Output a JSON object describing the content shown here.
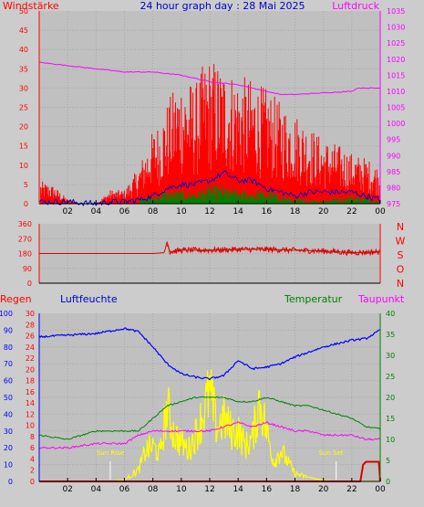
{
  "labels": {
    "windstaerke": "Windstärke",
    "title": "24 hour graph day : 28 Mai 2025",
    "luftdruck": "Luftdruck",
    "regen": "Regen",
    "luftfeuchte": "Luftfeuchte",
    "temperatur": "Temperatur",
    "taupunkt": "Taupunkt",
    "sunrise": "Sun Rise",
    "sunset": "Sun Set"
  },
  "colors": {
    "wind": "#ff0000",
    "gust_fill": "#ff0000",
    "wind_avg": "#0000cc",
    "wind_low": "#008000",
    "pressure": "#ff00ff",
    "direction": "#dd0000",
    "humidity": "#0000ff",
    "temperature": "#008000",
    "dewpoint": "#ff00ff",
    "solar": "#ffff00",
    "rain": "#dd0000",
    "grid": "#a8a8a8"
  },
  "chart_data": [
    {
      "type": "line",
      "name": "wind-pressure",
      "x_ticks": [
        "02",
        "04",
        "06",
        "08",
        "10",
        "12",
        "14",
        "16",
        "18",
        "20",
        "22",
        "00"
      ],
      "y_left_ticks": [
        "0",
        "5",
        "10",
        "15",
        "20",
        "25",
        "30",
        "35",
        "40",
        "45",
        "50"
      ],
      "y_right_ticks": [
        "975",
        "980",
        "985",
        "990",
        "995",
        "1000",
        "1005",
        "1010",
        "1015",
        "1020",
        "1025",
        "1030",
        "1035"
      ],
      "ylim_left": [
        0,
        50
      ],
      "ylim_right": [
        975,
        1035
      ],
      "pressure": {
        "x": [
          0,
          2,
          4,
          6,
          8,
          10,
          11,
          12,
          14,
          15,
          16,
          17,
          18,
          20,
          22,
          22.4,
          24
        ],
        "y": [
          1019,
          1018,
          1017,
          1016,
          1016,
          1015,
          1014,
          1013,
          1012,
          1011,
          1010,
          1009,
          1009,
          1009.5,
          1010,
          1011,
          1011
        ]
      },
      "gust_envelope": {
        "x": [
          0,
          1,
          2,
          3,
          4,
          5,
          6,
          7,
          7.5,
          8,
          8.5,
          9,
          10,
          11,
          11.5,
          12,
          13,
          14,
          15,
          16,
          17,
          18,
          19,
          20,
          21,
          22,
          23,
          24
        ],
        "y": [
          5,
          4,
          1,
          0,
          0,
          3,
          3,
          8,
          12,
          16,
          18,
          22,
          28,
          26,
          30,
          32,
          30,
          28,
          27,
          25,
          22,
          20,
          17,
          14,
          13,
          11,
          10,
          8
        ]
      },
      "wind_avg": {
        "x": [
          0,
          2,
          4,
          5,
          6,
          7,
          8,
          9,
          10,
          11,
          12,
          13,
          14,
          15,
          16,
          17,
          18,
          19,
          20,
          21,
          22,
          23,
          24
        ],
        "y": [
          0.5,
          0.5,
          0,
          0.5,
          0.5,
          1,
          2,
          4,
          5,
          5,
          6,
          8,
          6,
          6,
          4,
          3,
          2,
          3,
          3,
          3,
          3,
          2,
          1
        ]
      },
      "wind_low": {
        "x": [
          0,
          4,
          7,
          8,
          9,
          10,
          11,
          12,
          13,
          14,
          15,
          16,
          17,
          18,
          20,
          22,
          24
        ],
        "y": [
          0,
          0,
          1,
          2,
          3,
          3,
          3,
          4,
          4,
          3,
          3,
          3,
          2,
          1,
          1,
          2,
          1
        ]
      }
    },
    {
      "type": "line",
      "name": "wind-direction",
      "y_ticks": [
        "360",
        "270",
        "180",
        "90",
        "0"
      ],
      "y_right_labels": [
        "N",
        "W",
        "S",
        "O",
        "N"
      ],
      "ylim": [
        0,
        360
      ],
      "direction": {
        "x": [
          0,
          2,
          4,
          6,
          8,
          8.8,
          9,
          9.2,
          10,
          12,
          14,
          16,
          18,
          20,
          22,
          24
        ],
        "y": [
          180,
          180,
          180,
          180,
          180,
          185,
          250,
          190,
          200,
          200,
          205,
          205,
          200,
          195,
          185,
          190
        ]
      }
    },
    {
      "type": "line",
      "name": "humidity-temperature",
      "x_ticks": [
        "02",
        "04",
        "06",
        "08",
        "10",
        "12",
        "14",
        "16",
        "18",
        "20",
        "22",
        "00"
      ],
      "y_humidity_ticks": [
        "100",
        "90",
        "80",
        "70",
        "60",
        "50",
        "40",
        "30",
        "20",
        "10",
        "0"
      ],
      "y_rain_ticks": [
        "30",
        "28",
        "26",
        "24",
        "22",
        "20",
        "18",
        "16",
        "14",
        "12",
        "10",
        "8",
        "6",
        "4",
        "2",
        "0"
      ],
      "y_temp_ticks": [
        "0",
        "5",
        "10",
        "15",
        "20",
        "25",
        "30",
        "35",
        "40"
      ],
      "ylim_humidity": [
        0,
        100
      ],
      "ylim_rain": [
        0,
        30
      ],
      "ylim_temp": [
        0,
        40
      ],
      "humidity": {
        "x": [
          0,
          2,
          4,
          6,
          7,
          8,
          9,
          10,
          11,
          12,
          13,
          14,
          15,
          16,
          17,
          18,
          19,
          20,
          21,
          22,
          23,
          24
        ],
        "y": [
          86,
          87,
          88,
          91,
          89,
          80,
          70,
          64,
          62,
          61,
          63,
          72,
          67,
          68,
          70,
          74,
          77,
          80,
          82,
          84,
          85,
          90
        ]
      },
      "temperature": {
        "x": [
          0,
          2,
          4,
          6,
          7,
          8,
          9,
          10,
          11,
          12,
          13,
          14,
          15,
          16,
          17,
          18,
          19,
          20,
          21,
          22,
          23,
          24
        ],
        "y": [
          11,
          10,
          12,
          12,
          12,
          15,
          18,
          19,
          20,
          20,
          20,
          19,
          19,
          20,
          19,
          18,
          18,
          17,
          16,
          15,
          13,
          12.5
        ]
      },
      "dewpoint": {
        "x": [
          0,
          2,
          4,
          6,
          7,
          8,
          9,
          10,
          11,
          12,
          13,
          14,
          15,
          16,
          17,
          18,
          19,
          20,
          21,
          22,
          23,
          24
        ],
        "y": [
          8,
          8,
          9,
          9,
          11,
          12,
          12,
          12,
          12,
          12,
          13,
          14,
          13,
          14,
          13,
          12,
          12,
          11,
          11,
          11,
          10,
          10
        ]
      },
      "solar": {
        "x": [
          0,
          5,
          6,
          7,
          7.5,
          8,
          8.5,
          9,
          9.5,
          10,
          10.5,
          11,
          11.5,
          12,
          12.5,
          13,
          13.5,
          14,
          14.5,
          15,
          15.5,
          16,
          16.5,
          17,
          18,
          19,
          20,
          21,
          24
        ],
        "y": [
          0,
          0,
          0.3,
          3,
          8,
          9,
          7,
          19,
          12,
          10,
          8,
          12,
          17,
          23,
          14,
          16,
          13,
          13,
          9,
          11,
          21,
          13,
          5,
          8,
          2,
          1,
          0.2,
          0,
          0
        ]
      },
      "rain": {
        "x": [
          0,
          22.6,
          22.8,
          23,
          23.9,
          24
        ],
        "y": [
          0,
          0,
          3,
          3.5,
          3.5,
          0
        ]
      }
    }
  ]
}
